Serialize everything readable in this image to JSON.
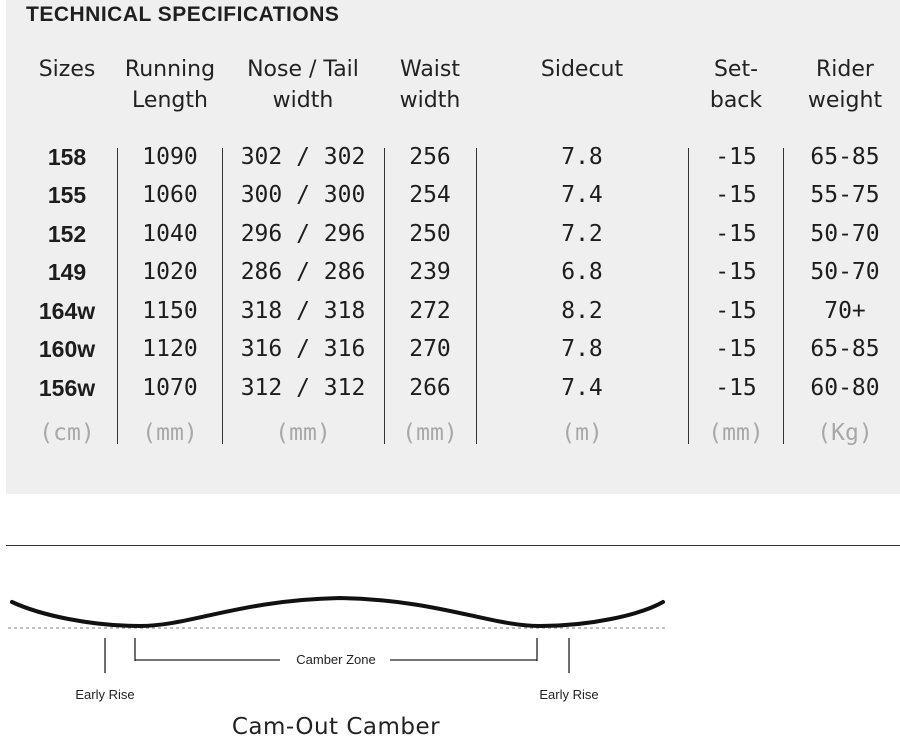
{
  "title": "TECHNICAL SPECIFICATIONS",
  "columns": [
    {
      "key": "size",
      "label1": "Sizes",
      "label2": "",
      "unit": "(cm)"
    },
    {
      "key": "running_length",
      "label1": "Running",
      "label2": "Length",
      "unit": "(mm)"
    },
    {
      "key": "nose_tail",
      "label1": "Nose / Tail",
      "label2": "width",
      "unit": "(mm)"
    },
    {
      "key": "waist",
      "label1": "Waist",
      "label2": "width",
      "unit": "(mm)"
    },
    {
      "key": "sidecut",
      "label1": "Sidecut",
      "label2": "",
      "unit": "(m)"
    },
    {
      "key": "setback",
      "label1": "Set-",
      "label2": "back",
      "unit": "(mm)"
    },
    {
      "key": "rider_weight",
      "label1": "Rider",
      "label2": "weight",
      "unit": "(Kg)"
    }
  ],
  "rows": [
    [
      "158",
      "1090",
      "302 / 302",
      "256",
      "7.8",
      "-15",
      "65-85"
    ],
    [
      "155",
      "1060",
      "300 / 300",
      "254",
      "7.4",
      "-15",
      "55-75"
    ],
    [
      "152",
      "1040",
      "296 / 296",
      "250",
      "7.2",
      "-15",
      "50-70"
    ],
    [
      "149",
      "1020",
      "286 / 286",
      "239",
      "6.8",
      "-15",
      "50-70"
    ],
    [
      "164w",
      "1150",
      "318 / 318",
      "272",
      "8.2",
      "-15",
      "70+"
    ],
    [
      "160w",
      "1120",
      "316 / 316",
      "270",
      "7.8",
      "-15",
      "65-85"
    ],
    [
      "156w",
      "1070",
      "312 / 312",
      "266",
      "7.4",
      "-15",
      "60-80"
    ]
  ],
  "profile": {
    "name": "Cam-Out Camber",
    "early_rise_left": "Early Rise",
    "early_rise_right": "Early Rise",
    "camber_zone": "Camber Zone"
  }
}
